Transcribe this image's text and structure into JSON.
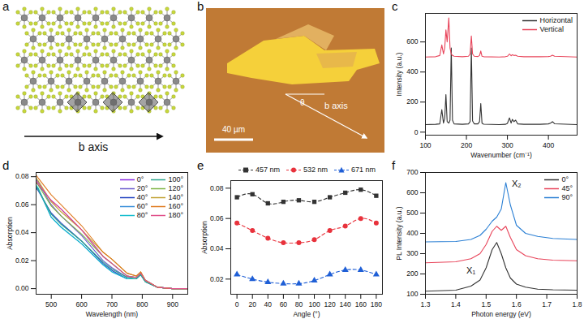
{
  "diagrams": [
    {
      "panel": "a",
      "arrow_label": "b axis"
    },
    {
      "panel": "b",
      "scale_bar": "40 µm",
      "angle_label": "θ",
      "arrow_label": "b axis"
    }
  ],
  "chart_data": [
    {
      "panel": "c",
      "type": "line",
      "x_label": "Wavenumber (cm⁻¹)",
      "y_label": "Intensity (a.u.)",
      "xlim": [
        100,
        470
      ],
      "xticks": [
        100,
        200,
        300,
        400
      ],
      "ylim": [
        -20,
        790
      ],
      "yticks": [
        0,
        200,
        400,
        600
      ],
      "legend": "upper right",
      "x": [
        100,
        125,
        135,
        140,
        144,
        147,
        150,
        153,
        157,
        160,
        163,
        166,
        170,
        190,
        205,
        209,
        212,
        215,
        219,
        228,
        232,
        235,
        238,
        242,
        280,
        295,
        300,
        305,
        309,
        312,
        316,
        320,
        325,
        340,
        380,
        400,
        405,
        410,
        415,
        470
      ],
      "series": [
        {
          "name": "Horizontal",
          "color": "#333333",
          "values": [
            50,
            52,
            55,
            150,
            60,
            90,
            250,
            70,
            60,
            80,
            560,
            80,
            55,
            52,
            55,
            70,
            560,
            75,
            55,
            55,
            70,
            190,
            60,
            53,
            50,
            52,
            58,
            95,
            60,
            85,
            70,
            80,
            55,
            52,
            52,
            55,
            60,
            70,
            56,
            50
          ]
        },
        {
          "name": "Vertical",
          "color": "#e8445a",
          "values": [
            500,
            502,
            510,
            580,
            520,
            560,
            680,
            600,
            760,
            560,
            520,
            510,
            505,
            502,
            505,
            520,
            640,
            520,
            505,
            503,
            510,
            540,
            505,
            502,
            500,
            502,
            505,
            520,
            508,
            515,
            510,
            512,
            505,
            502,
            502,
            503,
            505,
            512,
            505,
            500
          ]
        }
      ]
    },
    {
      "panel": "d",
      "type": "line",
      "x_label": "Wavelength (nm)",
      "y_label": "Absorption",
      "xlim": [
        450,
        950
      ],
      "xticks": [
        500,
        600,
        700,
        800,
        900
      ],
      "ylim": [
        -0.004,
        0.083
      ],
      "yticks": [
        {
          "value": 0,
          "label": "0.00"
        },
        0.02,
        0.04,
        0.06,
        0.08
      ],
      "legend": "upper right",
      "x": [
        450,
        457,
        500,
        532,
        600,
        671,
        700,
        750,
        780,
        795,
        810,
        850,
        900,
        950
      ],
      "series": [
        {
          "name": "0°",
          "color": "#8a2be2",
          "values": [
            0.076,
            0.074,
            0.063,
            0.057,
            0.042,
            0.023,
            0.018,
            0.009,
            0.008,
            0.011,
            0.006,
            0.001,
            0,
            0
          ]
        },
        {
          "name": "20°",
          "color": "#6a5acd",
          "values": [
            0.078,
            0.076,
            0.06,
            0.052,
            0.038,
            0.02,
            0.015,
            0.008,
            0.008,
            0.011,
            0.006,
            0.001,
            0,
            0
          ]
        },
        {
          "name": "40°",
          "color": "#1f3fbf",
          "values": [
            0.072,
            0.07,
            0.054,
            0.047,
            0.034,
            0.018,
            0.013,
            0.007,
            0.007,
            0.01,
            0.005,
            0.001,
            0,
            0
          ]
        },
        {
          "name": "60°",
          "color": "#3a8fd9",
          "values": [
            0.073,
            0.071,
            0.051,
            0.044,
            0.032,
            0.017,
            0.012,
            0.007,
            0.007,
            0.01,
            0.005,
            0.001,
            0,
            0
          ]
        },
        {
          "name": "80°",
          "color": "#17becf",
          "values": [
            0.074,
            0.072,
            0.051,
            0.044,
            0.032,
            0.017,
            0.012,
            0.007,
            0.007,
            0.01,
            0.005,
            0.001,
            0,
            0
          ]
        },
        {
          "name": "100°",
          "color": "#2ca58d",
          "values": [
            0.073,
            0.071,
            0.053,
            0.046,
            0.034,
            0.019,
            0.014,
            0.008,
            0.007,
            0.01,
            0.005,
            0.001,
            0,
            0
          ]
        },
        {
          "name": "120°",
          "color": "#7cb342",
          "values": [
            0.076,
            0.074,
            0.059,
            0.052,
            0.039,
            0.023,
            0.018,
            0.009,
            0.008,
            0.011,
            0.006,
            0.001,
            0,
            0
          ]
        },
        {
          "name": "140°",
          "color": "#c0a030",
          "values": [
            0.079,
            0.077,
            0.062,
            0.055,
            0.042,
            0.026,
            0.021,
            0.011,
            0.009,
            0.012,
            0.006,
            0.001,
            0,
            0
          ]
        },
        {
          "name": "160°",
          "color": "#e07b20",
          "values": [
            0.081,
            0.079,
            0.067,
            0.06,
            0.045,
            0.026,
            0.021,
            0.011,
            0.009,
            0.012,
            0.006,
            0.001,
            0,
            0
          ]
        },
        {
          "name": "180°",
          "color": "#e0508a",
          "values": [
            0.077,
            0.075,
            0.063,
            0.057,
            0.042,
            0.023,
            0.018,
            0.009,
            0.008,
            0.011,
            0.006,
            0.001,
            0,
            0
          ]
        }
      ]
    },
    {
      "panel": "e",
      "type": "scatter",
      "x_label": "Angle (°)",
      "y_label": "Absorption",
      "xlim": [
        -8,
        188
      ],
      "xticks": [
        0,
        20,
        40,
        60,
        80,
        100,
        120,
        140,
        160,
        180
      ],
      "ylim": [
        0.01,
        0.085
      ],
      "yticks": [
        0.02,
        0.04,
        0.06,
        0.08
      ],
      "legend": "top",
      "x": [
        0,
        20,
        40,
        60,
        80,
        100,
        120,
        140,
        160,
        180
      ],
      "series": [
        {
          "name": "457 nm",
          "color": "#333333",
          "marker": "square",
          "line_style": "dashed",
          "values": [
            0.074,
            0.076,
            0.07,
            0.071,
            0.072,
            0.071,
            0.074,
            0.077,
            0.079,
            0.075
          ]
        },
        {
          "name": "532 nm",
          "color": "#e8323c",
          "marker": "circle",
          "line_style": "dashed",
          "values": [
            0.057,
            0.052,
            0.047,
            0.044,
            0.044,
            0.046,
            0.052,
            0.055,
            0.06,
            0.057
          ]
        },
        {
          "name": "671 nm",
          "color": "#1f5fd6",
          "marker": "triangle",
          "line_style": "dashed",
          "values": [
            0.023,
            0.02,
            0.018,
            0.017,
            0.017,
            0.019,
            0.023,
            0.026,
            0.026,
            0.023
          ]
        }
      ]
    },
    {
      "panel": "f",
      "type": "line",
      "x_label": "Photon energy (eV)",
      "y_label": "PL Intensity (a.u.)",
      "xlim": [
        1.3,
        1.8
      ],
      "xticks": [
        1.3,
        1.4,
        1.5,
        1.6,
        1.7,
        1.8
      ],
      "ylim": [
        100,
        700
      ],
      "yticks": [
        100,
        200,
        300,
        400,
        500,
        600,
        700
      ],
      "legend": "upper right",
      "x": [
        1.3,
        1.4,
        1.45,
        1.48,
        1.5,
        1.52,
        1.535,
        1.55,
        1.565,
        1.58,
        1.6,
        1.63,
        1.67,
        1.72,
        1.8
      ],
      "series": [
        {
          "name": "0°",
          "color": "#333333",
          "values": [
            115,
            120,
            140,
            170,
            230,
            320,
            355,
            300,
            230,
            180,
            150,
            135,
            125,
            122,
            120
          ]
        },
        {
          "name": "45°",
          "color": "#e8445a",
          "values": [
            255,
            260,
            275,
            300,
            345,
            410,
            435,
            415,
            435,
            380,
            320,
            290,
            275,
            268,
            265
          ]
        },
        {
          "name": "90°",
          "color": "#2a7fd4",
          "values": [
            358,
            360,
            370,
            390,
            420,
            460,
            480,
            520,
            650,
            540,
            440,
            400,
            385,
            375,
            370
          ]
        }
      ],
      "annotations": [
        {
          "text": "X₁",
          "x": 1.45,
          "y": 215
        },
        {
          "text": "X₂",
          "x": 1.6,
          "y": 645
        }
      ]
    }
  ]
}
